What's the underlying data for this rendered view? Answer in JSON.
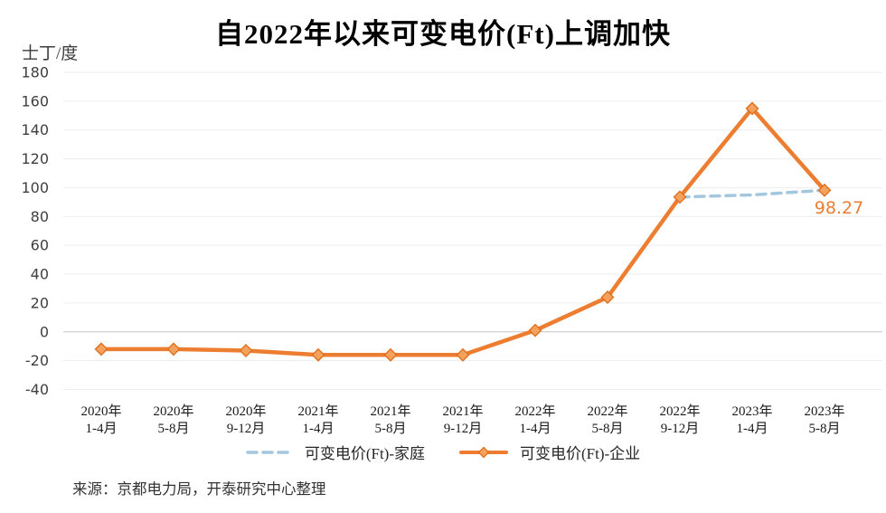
{
  "title": "自2022年以来可变电价(Ft)上调加快",
  "y_unit_label": "士丁/度",
  "source": "来源：京都电力局，开泰研究中心整理",
  "colors": {
    "enterprise_line": "#ED7D31",
    "enterprise_marker_fill": "#F2A25C",
    "enterprise_marker_stroke": "#E0701E",
    "household_line": "#A3C7DE",
    "gridline": "#EDEDED",
    "zero_line": "#C3C3C3",
    "tick_text": "#3F3F3F",
    "annotation_text": "#ED7D31"
  },
  "legend": [
    {
      "label": "可变电价(Ft)-家庭",
      "style": "dashed",
      "color": "#A3C7DE"
    },
    {
      "label": "可变电价(Ft)-企业",
      "style": "solid-diamond",
      "color": "#ED7D31"
    }
  ],
  "chart_data": {
    "type": "line",
    "title": "自2022年以来可变电价(Ft)上调加快",
    "ylabel": "士丁/度",
    "categories": [
      [
        "2020年",
        "1-4月"
      ],
      [
        "2020年",
        "5-8月"
      ],
      [
        "2020年",
        "9-12月"
      ],
      [
        "2021年",
        "1-4月"
      ],
      [
        "2021年",
        "5-8月"
      ],
      [
        "2021年",
        "9-12月"
      ],
      [
        "2022年",
        "1-4月"
      ],
      [
        "2022年",
        "5-8月"
      ],
      [
        "2022年",
        "9-12月"
      ],
      [
        "2023年",
        "1-4月"
      ],
      [
        "2023年",
        "5-8月"
      ]
    ],
    "series": [
      {
        "name": "可变电价(Ft)-家庭",
        "style": "dashed",
        "color": "#A3C7DE",
        "values": [
          null,
          null,
          null,
          null,
          null,
          null,
          null,
          null,
          93.5,
          95,
          98.27
        ]
      },
      {
        "name": "可变电价(Ft)-企业",
        "style": "solid",
        "marker": "diamond",
        "color": "#ED7D31",
        "values": [
          -12,
          -12,
          -13,
          -16,
          -16,
          -16,
          1,
          24,
          93.5,
          155,
          98.27
        ]
      }
    ],
    "ylim": [
      -40,
      180
    ],
    "ytick_step": 20,
    "grid": "horizontal",
    "legend_position": "bottom",
    "annotations": [
      {
        "series": "可变电价(Ft)-企业",
        "index": 10,
        "text": "98.27"
      }
    ]
  }
}
